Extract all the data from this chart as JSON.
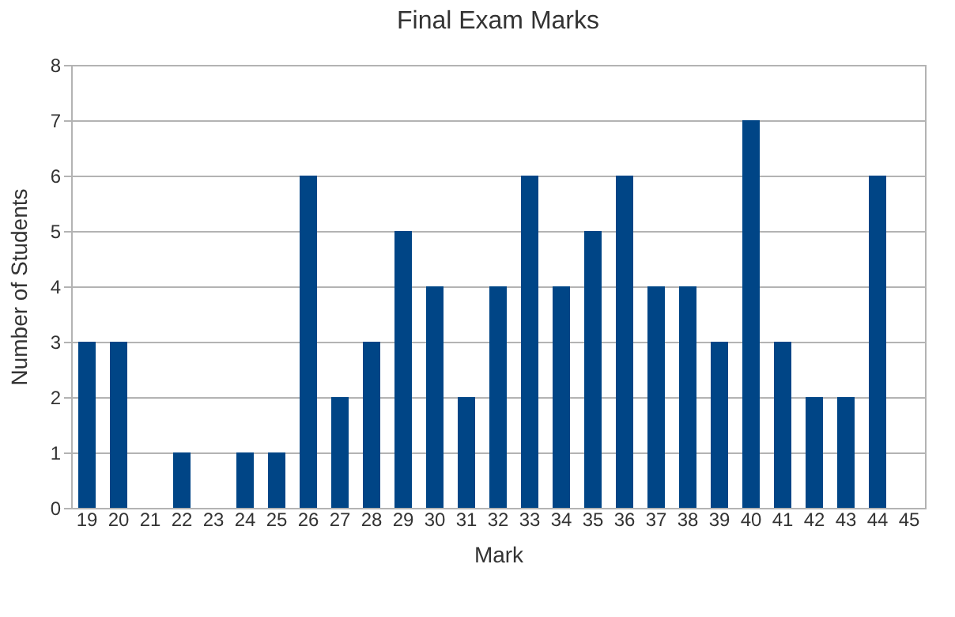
{
  "chart_data": {
    "type": "bar",
    "title": "Final Exam Marks",
    "xlabel": "Mark",
    "ylabel": "Number of Students",
    "categories": [
      "19",
      "20",
      "21",
      "22",
      "23",
      "24",
      "25",
      "26",
      "27",
      "28",
      "29",
      "30",
      "31",
      "32",
      "33",
      "34",
      "35",
      "36",
      "37",
      "38",
      "39",
      "40",
      "41",
      "42",
      "43",
      "44",
      "45"
    ],
    "values": [
      3,
      3,
      0,
      1,
      0,
      1,
      1,
      6,
      2,
      3,
      5,
      4,
      2,
      4,
      6,
      4,
      5,
      6,
      4,
      4,
      3,
      7,
      3,
      2,
      2,
      6,
      0
    ],
    "color": "#004586",
    "ylim": [
      0,
      8
    ],
    "yticks": [
      0,
      1,
      2,
      3,
      4,
      5,
      6,
      7,
      8
    ],
    "grid": "y"
  }
}
